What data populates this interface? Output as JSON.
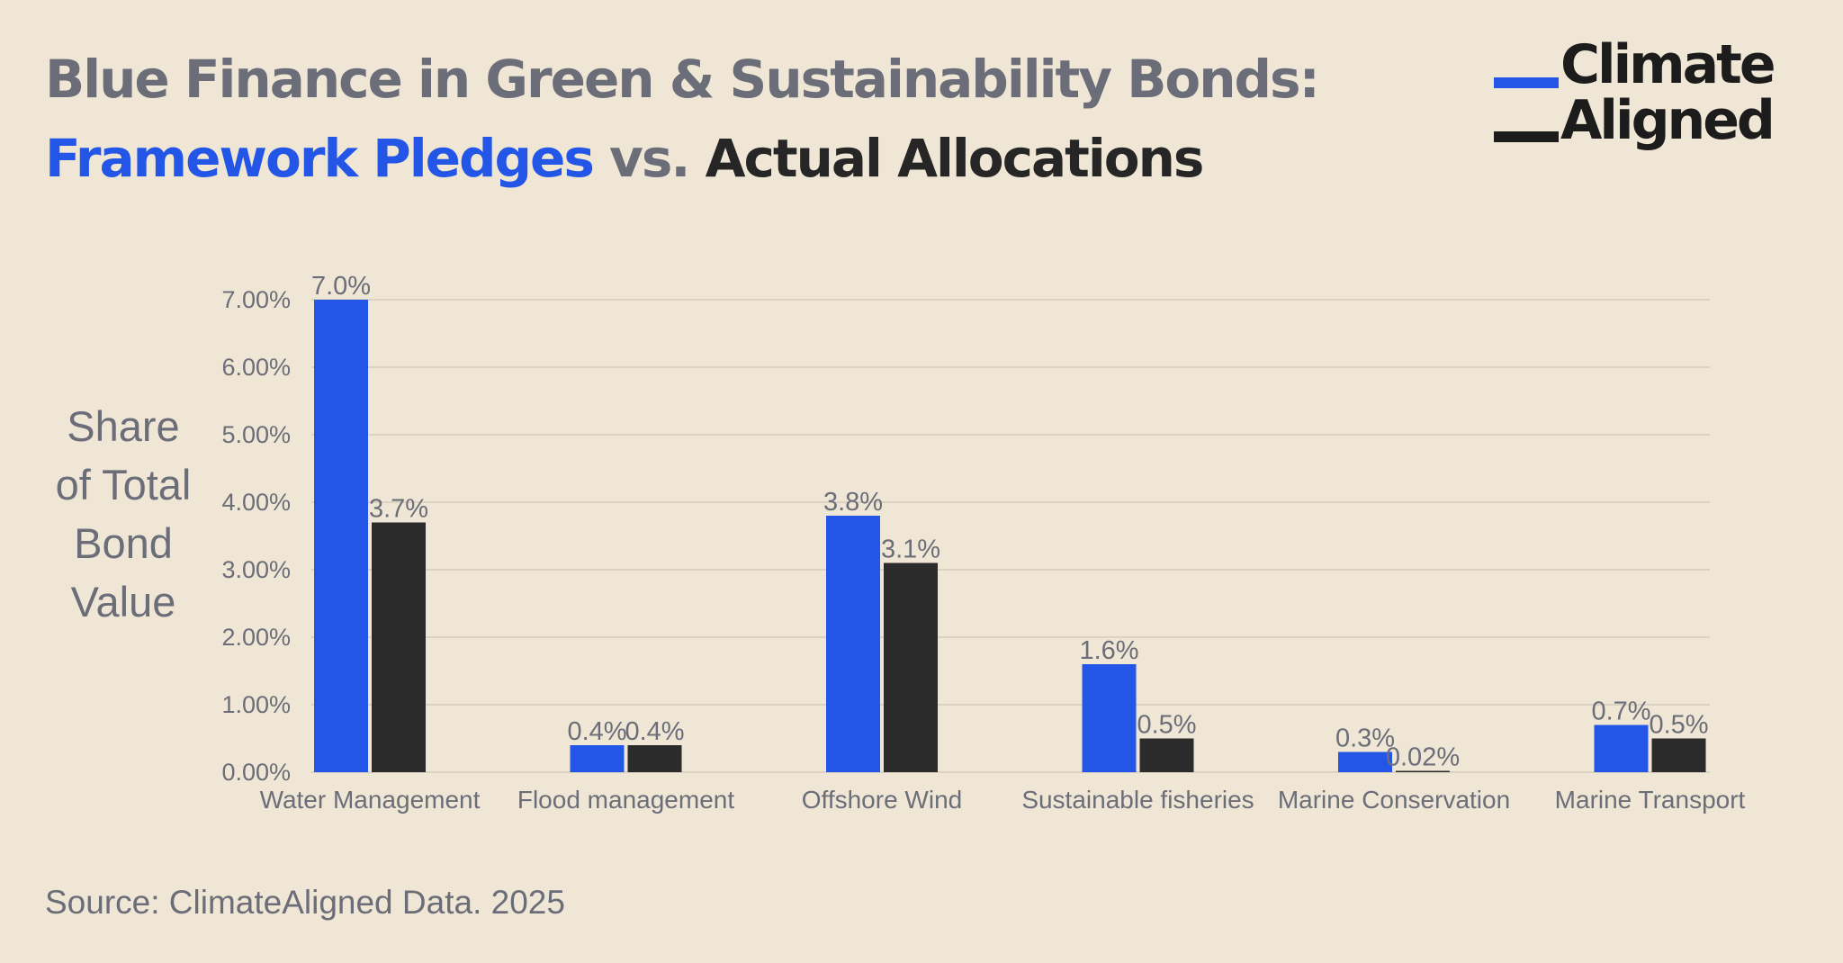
{
  "title": {
    "line1": "Blue Finance in Green & Sustainability Bonds:",
    "pledges": "Framework Pledges",
    "vs": "vs.",
    "actual": "Actual Allocations"
  },
  "logo": {
    "word1": "Climate",
    "word2": "Aligned"
  },
  "source": "Source: ClimateAligned Data. 2025",
  "colors": {
    "background": "#f0e6d6",
    "pledges": "#2356e6",
    "actual": "#2b2b2b",
    "muted_text": "#6b6e78",
    "gridline": "#d6ccbb"
  },
  "chart_data": {
    "type": "bar",
    "categories": [
      "Water Management",
      "Flood management",
      "Offshore Wind",
      "Sustainable fisheries",
      "Marine Conservation",
      "Marine Transport"
    ],
    "series": [
      {
        "values": [
          7.0,
          0.4,
          3.8,
          1.6,
          0.3,
          0.7
        ],
        "labels": [
          "7.0%",
          "0.4%",
          "3.8%",
          "1.6%",
          "0.3%",
          "0.7%"
        ],
        "color": "#2356e6"
      },
      {
        "values": [
          3.7,
          0.4,
          3.1,
          0.5,
          0.02,
          0.5
        ],
        "labels": [
          "3.7%",
          "0.4%",
          "3.1%",
          "0.5%",
          "0.02%",
          "0.5%"
        ],
        "color": "#2b2b2b"
      }
    ],
    "ylabel": [
      "Share",
      "of Total",
      "Bond",
      "Value"
    ],
    "ylim": [
      0,
      7
    ],
    "yticks": [
      0,
      1,
      2,
      3,
      4,
      5,
      6,
      7
    ],
    "ytick_labels": [
      "0.00%",
      "1.00%",
      "2.00%",
      "3.00%",
      "4.00%",
      "5.00%",
      "6.00%",
      "7.00%"
    ],
    "grid": true,
    "legend": "none"
  }
}
